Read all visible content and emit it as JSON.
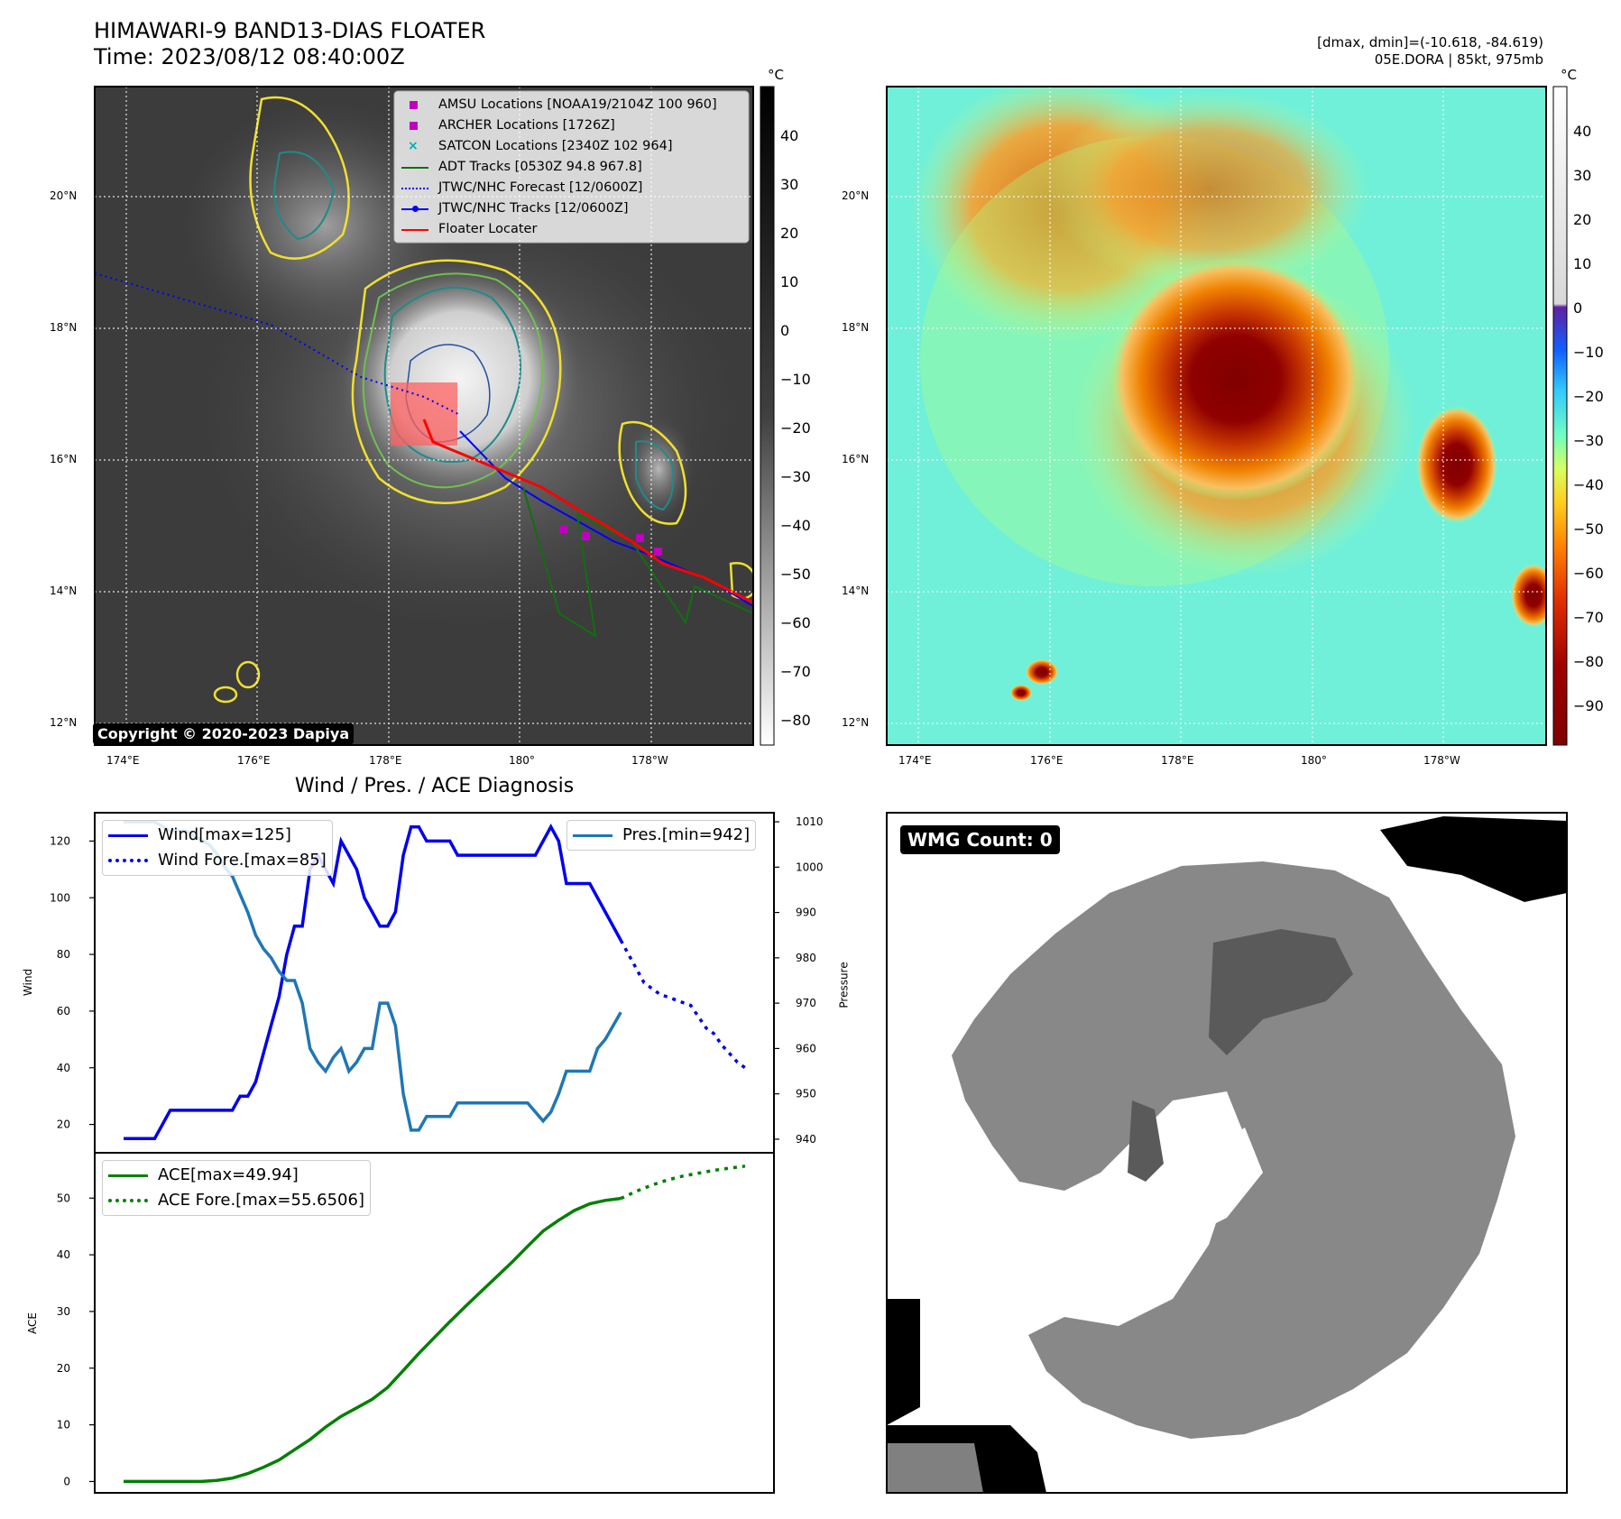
{
  "header": {
    "title_line1": "HIMAWARI-9 BAND13-DIAS FLOATER",
    "title_line2": "Time: 2023/08/12 08:40:00Z",
    "dmax_dmin": "[dmax, dmin]=(-10.618, -84.619)",
    "storm_info": "05E.DORA | 85kt, 975mb"
  },
  "ir_panel": {
    "colorbar_unit": "°C",
    "colorbar_ticks": [
      "40",
      "30",
      "20",
      "10",
      "0",
      "−10",
      "−20",
      "−30",
      "−40",
      "−50",
      "−60",
      "−70",
      "−80"
    ],
    "lat_labels": [
      "20°N",
      "18°N",
      "16°N",
      "14°N",
      "12°N"
    ],
    "lon_labels": [
      "174°E",
      "176°E",
      "178°E",
      "180°",
      "178°W"
    ],
    "copyright": "Copyright © 2020-2023 Dapiya",
    "legend": [
      {
        "label": "AMSU Locations [NOAA19/2104Z 100 960]",
        "marker": "square",
        "color": "#c000c0"
      },
      {
        "label": "ARCHER Locations [1726Z]",
        "marker": "square",
        "color": "#c000c0"
      },
      {
        "label": "SATCON Locations [2340Z 102 964]",
        "marker": "x",
        "color": "#00b0b0"
      },
      {
        "label": "ADT Tracks [0530Z 94.8 967.8]",
        "marker": "line",
        "color": "#107010"
      },
      {
        "label": "JTWC/NHC Forecast [12/0600Z]",
        "marker": "dotted",
        "color": "#0000ff"
      },
      {
        "label": "JTWC/NHC Tracks [12/0600Z]",
        "marker": "line-dot",
        "color": "#0000ff"
      },
      {
        "label": "Floater Locater",
        "marker": "line",
        "color": "#ff0000"
      }
    ]
  },
  "color_panel": {
    "colorbar_unit": "°C",
    "colorbar_ticks": [
      "40",
      "30",
      "20",
      "10",
      "0",
      "−10",
      "−20",
      "−30",
      "−40",
      "−50",
      "−60",
      "−70",
      "−80",
      "−90"
    ],
    "lat_labels": [
      "20°N",
      "18°N",
      "16°N",
      "14°N",
      "12°N"
    ],
    "lon_labels": [
      "174°E",
      "176°E",
      "178°E",
      "180°",
      "178°W"
    ]
  },
  "wmg_panel": {
    "badge": "WMG Count: 0"
  },
  "colors": {
    "wind": "#0000ee",
    "pressure": "#1f77b4",
    "ace": "#008000",
    "contour_yellow": "#f0e030",
    "contour_green": "#70c050",
    "contour_teal": "#208a8a"
  },
  "chart_data": [
    {
      "type": "line",
      "title": "Wind / Pres. / ACE Diagnosis",
      "xlabel": "",
      "ylabel": "Wind",
      "ylabel_right": "Pressure",
      "ylim": [
        10,
        130
      ],
      "ylim_right": [
        937,
        1012
      ],
      "yticks": [
        20,
        40,
        60,
        80,
        100,
        120
      ],
      "yticks_right": [
        940,
        950,
        960,
        970,
        980,
        990,
        1000,
        1010
      ],
      "x": [
        0,
        1,
        2,
        3,
        4,
        5,
        6,
        7,
        8,
        9,
        10,
        11,
        12,
        13,
        14,
        15,
        16,
        17,
        18,
        19,
        20,
        21,
        22,
        23,
        24,
        25,
        26,
        27,
        28,
        29,
        30,
        31,
        32,
        33,
        34,
        35,
        36,
        37,
        38,
        39,
        40,
        41,
        42,
        43,
        44,
        45,
        46,
        47,
        48,
        49,
        50,
        51,
        52,
        53,
        54,
        55,
        56,
        57,
        58,
        59,
        60,
        61,
        62,
        63,
        64,
        65,
        66,
        67,
        68,
        69,
        70,
        71,
        72,
        73,
        74,
        75,
        76,
        77,
        78,
        79,
        80
      ],
      "series": [
        {
          "name": "Wind[max=125]",
          "axis": "left",
          "style": "solid",
          "values": [
            15,
            15,
            15,
            15,
            15,
            20,
            25,
            25,
            25,
            25,
            25,
            25,
            25,
            25,
            25,
            30,
            30,
            35,
            45,
            55,
            65,
            80,
            90,
            90,
            110,
            115,
            110,
            105,
            120,
            115,
            110,
            100,
            95,
            90,
            90,
            95,
            115,
            125,
            125,
            120,
            120,
            120,
            120,
            115,
            115,
            115,
            115,
            115,
            115,
            115,
            115,
            115,
            115,
            115,
            120,
            125,
            120,
            105,
            105,
            105,
            105,
            100,
            95,
            90,
            85,
            null,
            null,
            null,
            null,
            null,
            null,
            null,
            null,
            null,
            null,
            null,
            null,
            null,
            null,
            null,
            null
          ]
        },
        {
          "name": "Wind Fore.[max=85]",
          "axis": "left",
          "style": "dotted",
          "values": [
            null,
            null,
            null,
            null,
            null,
            null,
            null,
            null,
            null,
            null,
            null,
            null,
            null,
            null,
            null,
            null,
            null,
            null,
            null,
            null,
            null,
            null,
            null,
            null,
            null,
            null,
            null,
            null,
            null,
            null,
            null,
            null,
            null,
            null,
            null,
            null,
            null,
            null,
            null,
            null,
            null,
            null,
            null,
            null,
            null,
            null,
            null,
            null,
            null,
            null,
            null,
            null,
            null,
            null,
            null,
            null,
            null,
            null,
            null,
            null,
            null,
            null,
            null,
            null,
            85,
            80,
            75,
            70,
            68,
            66,
            65,
            64,
            63,
            62,
            58,
            54,
            52,
            48,
            45,
            42,
            40
          ]
        },
        {
          "name": "Pres.[min=942]",
          "axis": "right",
          "style": "solid",
          "values": [
            1010,
            1010,
            1010,
            1010,
            1010,
            1009,
            1008,
            1008,
            1008,
            1007,
            1006,
            1005,
            1003,
            1000,
            998,
            994,
            990,
            985,
            982,
            980,
            977,
            975,
            975,
            970,
            960,
            957,
            955,
            958,
            960,
            955,
            957,
            960,
            960,
            970,
            970,
            965,
            950,
            942,
            942,
            945,
            945,
            945,
            945,
            948,
            948,
            948,
            948,
            948,
            948,
            948,
            948,
            948,
            948,
            946,
            944,
            946,
            950,
            955,
            955,
            955,
            955,
            960,
            962,
            965,
            968,
            null,
            null,
            null,
            null,
            null,
            null,
            null,
            null,
            null,
            null,
            null,
            null,
            null,
            null,
            null,
            null
          ]
        }
      ]
    },
    {
      "type": "line",
      "xlabel": "",
      "ylabel": "ACE",
      "ylim": [
        -2,
        58
      ],
      "yticks": [
        0,
        10,
        20,
        30,
        40,
        50
      ],
      "series": [
        {
          "name": "ACE[max=49.94]",
          "style": "solid",
          "x": [
            0,
            10,
            12,
            14,
            16,
            18,
            20,
            22,
            24,
            26,
            28,
            30,
            32,
            34,
            36,
            38,
            40,
            42,
            44,
            46,
            48,
            50,
            52,
            54,
            56,
            58,
            60,
            62,
            64
          ],
          "values": [
            0,
            0,
            0.2,
            0.6,
            1.4,
            2.5,
            3.8,
            5.6,
            7.4,
            9.6,
            11.5,
            13,
            14.5,
            16.6,
            19.6,
            22.6,
            25.4,
            28.2,
            30.9,
            33.5,
            36.1,
            38.7,
            41.5,
            44.2,
            46.1,
            47.8,
            49.0,
            49.6,
            49.94
          ]
        },
        {
          "name": "ACE Fore.[max=55.6506]",
          "style": "dotted",
          "x": [
            64,
            66,
            68,
            70,
            72,
            74,
            76,
            78,
            80
          ],
          "values": [
            49.94,
            51.2,
            52.3,
            53.2,
            53.9,
            54.4,
            54.9,
            55.3,
            55.65
          ]
        }
      ]
    }
  ]
}
